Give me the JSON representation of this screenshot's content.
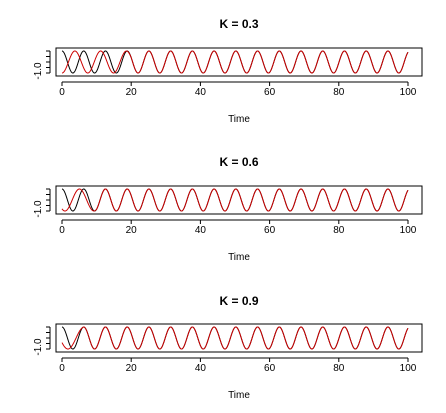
{
  "chart_data": [
    {
      "type": "line",
      "title": "K = 0.3",
      "xlabel": "Time",
      "ylabel": "",
      "xlim": [
        0,
        100
      ],
      "ylim": [
        -1.0,
        1.0
      ],
      "x_ticks": [
        0,
        20,
        40,
        60,
        80,
        100
      ],
      "y_tick_labels": [
        "-1.0"
      ],
      "grid": false,
      "series": [
        {
          "color": "#000000",
          "x": [
            0,
            100
          ],
          "y": [
            -1.0,
            1.0
          ],
          "period": 6.28,
          "phase": 0
        },
        {
          "color": "#cc0000",
          "x": [
            0,
            100
          ],
          "y": [
            -1.0,
            1.0
          ],
          "period": 6.28,
          "phase": 3.14,
          "sync_time": 20
        }
      ]
    },
    {
      "type": "line",
      "title": "K = 0.6",
      "xlabel": "Time",
      "ylabel": "",
      "xlim": [
        0,
        100
      ],
      "ylim": [
        -1.0,
        1.0
      ],
      "x_ticks": [
        0,
        20,
        40,
        60,
        80,
        100
      ],
      "y_tick_labels": [
        "-1.0"
      ],
      "grid": false,
      "series": [
        {
          "color": "#000000",
          "x": [
            0,
            100
          ],
          "y": [
            -1.0,
            1.0
          ],
          "period": 6.28,
          "phase": 0
        },
        {
          "color": "#cc0000",
          "x": [
            0,
            100
          ],
          "y": [
            -1.0,
            1.0
          ],
          "period": 6.28,
          "phase": 2.5,
          "sync_time": 10
        }
      ]
    },
    {
      "type": "line",
      "title": "K = 0.9",
      "xlabel": "Time",
      "ylabel": "",
      "xlim": [
        0,
        100
      ],
      "ylim": [
        -1.0,
        1.0
      ],
      "x_ticks": [
        0,
        20,
        40,
        60,
        80,
        100
      ],
      "y_tick_labels": [
        "-1.0"
      ],
      "grid": false,
      "series": [
        {
          "color": "#000000",
          "x": [
            0,
            100
          ],
          "y": [
            -1.0,
            1.0
          ],
          "period": 6.28,
          "phase": 0
        },
        {
          "color": "#cc0000",
          "x": [
            0,
            100
          ],
          "y": [
            -1.0,
            1.0
          ],
          "period": 6.28,
          "phase": 2.0,
          "sync_time": 6
        }
      ]
    }
  ]
}
